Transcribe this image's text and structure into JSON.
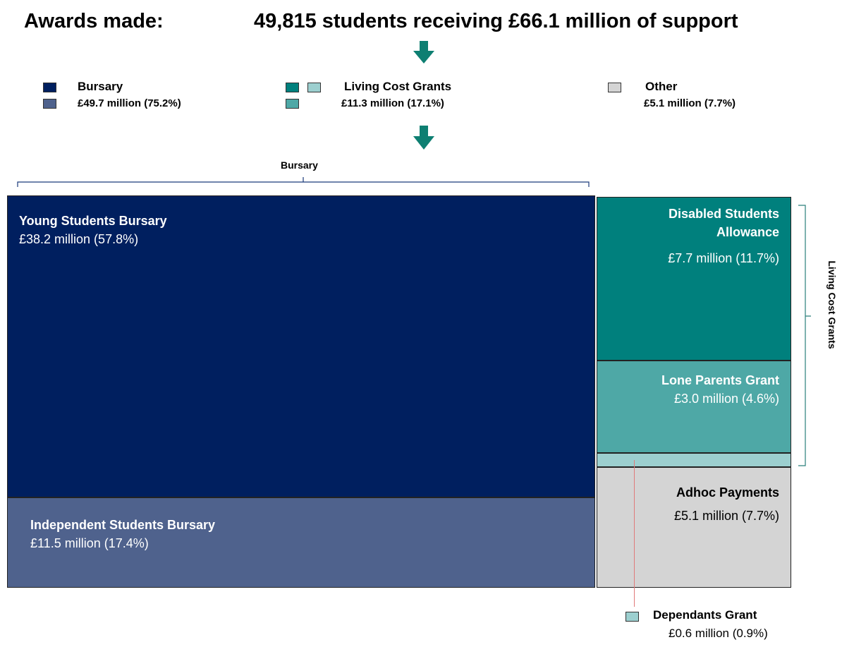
{
  "header": {
    "awards_label": "Awards made:",
    "summary": "49,815 students receiving £66.1 million of support"
  },
  "legend": {
    "bursary": {
      "label": "Bursary",
      "value": "£49.7 million (75.2%)"
    },
    "living": {
      "label": "Living Cost Grants",
      "value": "£11.3 million (17.1%)"
    },
    "other": {
      "label": "Other",
      "value": "£5.1 million (7.7%)"
    }
  },
  "braces": {
    "bursary": "Bursary",
    "living": "Living Cost Grants"
  },
  "colors": {
    "young": "#001f5f",
    "independent": "#4f628d",
    "disabled": "#00807d",
    "lone": "#4ea8a6",
    "dependants": "#9ccfcf",
    "adhoc": "#d4d4d4",
    "arrow": "#0e7f72"
  },
  "chart_data": {
    "type": "treemap",
    "title": "Awards made: 49,815 students receiving £66.1 million of support",
    "unit": "£ million",
    "groups": [
      {
        "name": "Bursary",
        "value": 49.7,
        "percent": 75.2,
        "items": [
          {
            "name": "Young Students Bursary",
            "value": 38.2,
            "percent": 57.8,
            "label": "£38.2 million (57.8%)"
          },
          {
            "name": "Independent Students Bursary",
            "value": 11.5,
            "percent": 17.4,
            "label": "£11.5 million (17.4%)"
          }
        ]
      },
      {
        "name": "Living Cost Grants",
        "value": 11.3,
        "percent": 17.1,
        "items": [
          {
            "name": "Disabled Students Allowance",
            "value": 7.7,
            "percent": 11.7,
            "label": "£7.7 million (11.7%)"
          },
          {
            "name": "Lone Parents Grant",
            "value": 3.0,
            "percent": 4.6,
            "label": "£3.0 million (4.6%)"
          },
          {
            "name": "Dependants Grant",
            "value": 0.6,
            "percent": 0.9,
            "label": "£0.6 million (0.9%)"
          }
        ]
      },
      {
        "name": "Other",
        "value": 5.1,
        "percent": 7.7,
        "items": [
          {
            "name": "Adhoc Payments",
            "value": 5.1,
            "percent": 7.7,
            "label": "£5.1 million (7.7%)"
          }
        ]
      }
    ]
  }
}
